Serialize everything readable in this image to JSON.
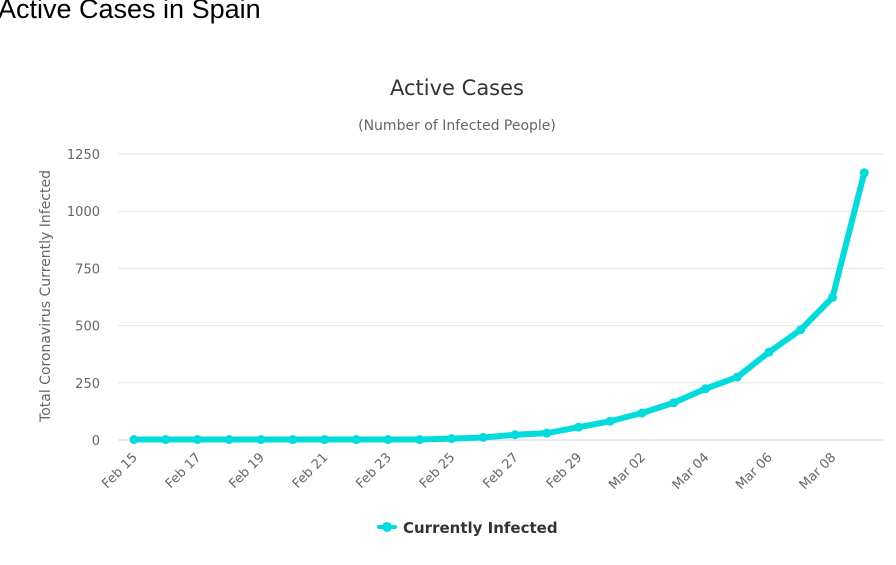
{
  "page": {
    "heading": "Active Cases in Spain"
  },
  "colors": {
    "series": "#00dcdc",
    "grid": "#e6e6e6",
    "axis_line": "#ccd6eb",
    "text": "#333333",
    "label": "#666666"
  },
  "chart_data": {
    "type": "line",
    "title": "Active Cases",
    "subtitle": "(Number of Infected People)",
    "xlabel": "",
    "ylabel": "Total Coronavirus Currently Infected",
    "ylim": [
      0,
      1250
    ],
    "yticks": [
      0,
      250,
      500,
      750,
      1000,
      1250
    ],
    "grid": true,
    "legend": "bottom-center",
    "x": [
      "Feb 15",
      "Feb 16",
      "Feb 17",
      "Feb 18",
      "Feb 19",
      "Feb 20",
      "Feb 21",
      "Feb 22",
      "Feb 23",
      "Feb 24",
      "Feb 25",
      "Feb 26",
      "Feb 27",
      "Feb 28",
      "Feb 29",
      "Mar 01",
      "Mar 02",
      "Mar 03",
      "Mar 04",
      "Mar 05",
      "Mar 06",
      "Mar 07",
      "Mar 08",
      "Mar 09"
    ],
    "xtick_labels": [
      "Feb 15",
      "Feb 17",
      "Feb 19",
      "Feb 21",
      "Feb 23",
      "Feb 25",
      "Feb 27",
      "Feb 29",
      "Mar 02",
      "Mar 04",
      "Mar 06",
      "Mar 08"
    ],
    "series": [
      {
        "name": "Currently Infected",
        "values": [
          2,
          2,
          2,
          2,
          2,
          2,
          2,
          2,
          2,
          2,
          6,
          11,
          23,
          30,
          56,
          82,
          118,
          163,
          224,
          275,
          384,
          482,
          623,
          1168
        ]
      }
    ]
  }
}
